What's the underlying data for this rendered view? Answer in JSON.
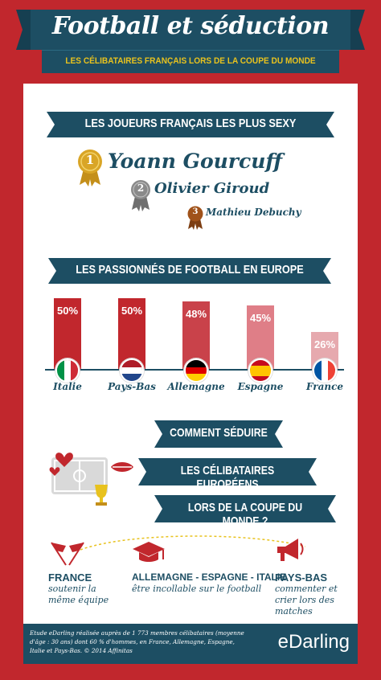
{
  "header": {
    "title": "Football et séduction",
    "subtitle": "LES CÉLIBATAIRES FRANÇAIS LORS DE LA COUPE DU MONDE"
  },
  "players_section": {
    "heading": "LES JOUEURS FRANÇAIS LES PLUS SEXY",
    "players": [
      {
        "rank": "1",
        "name": "Yoann Gourcuff",
        "medal_color": "#d9a526"
      },
      {
        "rank": "2",
        "name": "Olivier Giroud",
        "medal_color": "#8a8a8a"
      },
      {
        "rank": "3",
        "name": "Mathieu Debuchy",
        "medal_color": "#a0521a"
      }
    ]
  },
  "passion_section": {
    "heading": "LES PASSIONNÉS DE FOOTBALL EN EUROPE",
    "chart_data": {
      "type": "bar",
      "categories": [
        "Italie",
        "Pays-Bas",
        "Allemagne",
        "Espagne",
        "France"
      ],
      "values": [
        50,
        50,
        48,
        45,
        26
      ],
      "labels": [
        "50%",
        "50%",
        "48%",
        "45%",
        "26%"
      ],
      "colors": [
        "#c1272d",
        "#c1272d",
        "#c9424a",
        "#df7e87",
        "#e6a9ae"
      ],
      "ylim": [
        0,
        100
      ]
    }
  },
  "seduce_section": {
    "lines": [
      "COMMENT SÉDUIRE",
      "LES CÉLIBATAIRES EUROPÉENS",
      "LORS DE LA COUPE DU MONDE ?"
    ],
    "tips": [
      {
        "title": "FRANCE",
        "text": "soutenir la même équipe",
        "icon": "flags-icon"
      },
      {
        "title": "ALLEMAGNE - ESPAGNE - ITALIE",
        "text": "être incollable sur le football",
        "icon": "graduation-cap-icon"
      },
      {
        "title": "PAYS-BAS",
        "text": "commenter et crier lors des matches",
        "icon": "megaphone-icon"
      }
    ]
  },
  "footer": {
    "note": "Etude eDarling réalisée auprès de 1 773 membres célibataires (moyenne d'âge : 30 ans) dont 60 % d'hommes, en France, Allemagne, Espagne, Italie et Pays-Bas. © 2014 Affinitas",
    "brand": "eDarling"
  },
  "colors": {
    "red": "#c1272d",
    "navy": "#1d4e63",
    "gold": "#e8c21e"
  }
}
